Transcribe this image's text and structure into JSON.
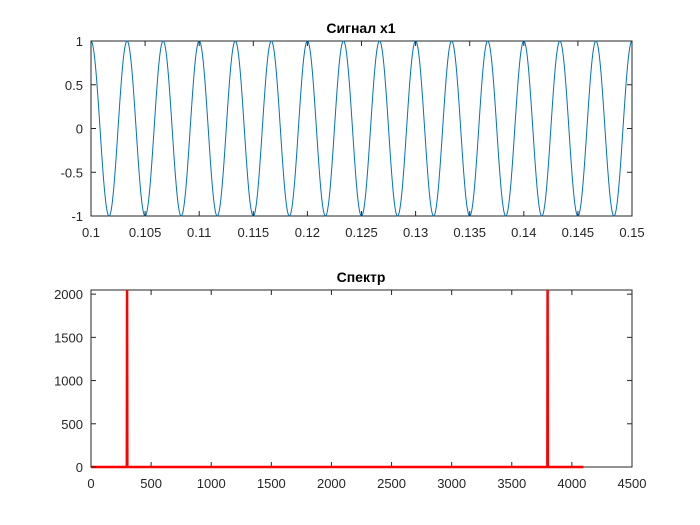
{
  "chart_data": [
    {
      "type": "line",
      "title": "Сигнал x1",
      "xlabel": "",
      "ylabel": "",
      "xlim": [
        0.1,
        0.15
      ],
      "ylim": [
        -1,
        1
      ],
      "xticks": [
        0.1,
        0.105,
        0.11,
        0.115,
        0.12,
        0.125,
        0.13,
        0.135,
        0.14,
        0.145,
        0.15
      ],
      "xtick_labels": [
        "0.1",
        "0.105",
        "0.11",
        "0.115",
        "0.12",
        "0.125",
        "0.13",
        "0.135",
        "0.14",
        "0.145",
        "0.15"
      ],
      "yticks": [
        -1,
        -0.5,
        0,
        0.5,
        1
      ],
      "ytick_labels": [
        "-1",
        "-0.5",
        "0",
        "0.5",
        "1"
      ],
      "grid": false,
      "series": [
        {
          "color": "#0072BD",
          "function": "cos",
          "amplitude": 1,
          "frequency_hz": 300
        }
      ]
    },
    {
      "type": "line",
      "title": "Спектр",
      "xlabel": "",
      "ylabel": "",
      "xlim": [
        0,
        4500
      ],
      "ylim": [
        0,
        2048
      ],
      "xticks": [
        0,
        500,
        1000,
        1500,
        2000,
        2500,
        3000,
        3500,
        4000,
        4500
      ],
      "xtick_labels": [
        "0",
        "500",
        "1000",
        "1500",
        "2000",
        "2500",
        "3000",
        "3500",
        "4000",
        "4500"
      ],
      "yticks": [
        0,
        500,
        1000,
        1500,
        2000
      ],
      "ytick_labels": [
        "0",
        "500",
        "1000",
        "1500",
        "2000"
      ],
      "grid": false,
      "series": [
        {
          "color": "#FF0000",
          "x": [
            0,
            298,
            300,
            302,
            3796,
            3798,
            3800,
            4096
          ],
          "y": [
            0,
            0,
            2048,
            0,
            0,
            2048,
            0,
            0
          ]
        }
      ]
    }
  ]
}
